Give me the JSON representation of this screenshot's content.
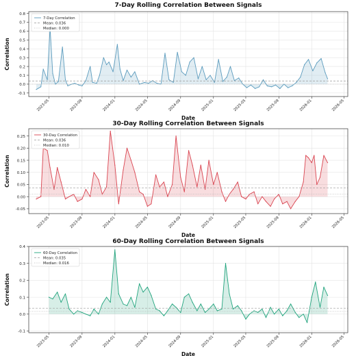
{
  "chart_data": [
    {
      "type": "line",
      "title": "7-Day Rolling Correlation Between Signals",
      "xlabel": "Date",
      "ylabel": "Correlation",
      "color": "#5b9bbd",
      "xlim": [
        "2023-02-15",
        "2026-05-15"
      ],
      "ylim": [
        -0.14,
        0.82
      ],
      "yticks": [
        -0.1,
        0.0,
        0.1,
        0.2,
        0.3,
        0.4,
        0.5,
        0.6,
        0.7,
        0.8
      ],
      "xticks": [
        "2023-05",
        "2023-09",
        "2024-01",
        "2024-05",
        "2024-09",
        "2025-01",
        "2025-05",
        "2025-09",
        "2026-01",
        "2026-05"
      ],
      "grid": true,
      "legend": {
        "position": "top-left",
        "entries": [
          "7-Day Correlation",
          "Mean: 0.036",
          "Median: 0.000"
        ]
      },
      "reference_lines": [
        {
          "name": "Mean: 0.036",
          "value": 0.036
        },
        {
          "name": "Median: 0.000",
          "value": 0.0
        }
      ],
      "series": [
        {
          "name": "7-Day Correlation",
          "x": [
            "2023-03-15",
            "2023-04-01",
            "2023-04-10",
            "2023-04-25",
            "2023-05-05",
            "2023-05-15",
            "2023-05-25",
            "2023-06-05",
            "2023-06-20",
            "2023-07-01",
            "2023-07-10",
            "2023-07-25",
            "2023-08-05",
            "2023-08-20",
            "2023-09-01",
            "2023-09-15",
            "2023-10-01",
            "2023-10-10",
            "2023-10-25",
            "2023-11-05",
            "2023-11-20",
            "2023-12-01",
            "2023-12-10",
            "2023-12-25",
            "2024-01-10",
            "2024-01-20",
            "2024-02-01",
            "2024-02-15",
            "2024-03-01",
            "2024-03-15",
            "2024-04-01",
            "2024-04-20",
            "2024-05-05",
            "2024-05-20",
            "2024-06-05",
            "2024-06-20",
            "2024-07-05",
            "2024-07-20",
            "2024-08-05",
            "2024-08-20",
            "2024-09-05",
            "2024-09-20",
            "2024-10-05",
            "2024-10-20",
            "2024-11-05",
            "2024-11-20",
            "2024-12-05",
            "2024-12-20",
            "2025-01-05",
            "2025-01-20",
            "2025-02-05",
            "2025-02-20",
            "2025-03-05",
            "2025-03-20",
            "2025-04-05",
            "2025-04-20",
            "2025-05-05",
            "2025-05-20",
            "2025-06-05",
            "2025-06-20",
            "2025-07-05",
            "2025-07-20",
            "2025-08-05",
            "2025-08-20",
            "2025-09-05",
            "2025-09-20",
            "2025-10-05",
            "2025-10-20",
            "2025-11-05",
            "2025-11-20",
            "2025-12-05",
            "2025-12-20",
            "2026-01-05",
            "2026-01-20",
            "2026-02-05",
            "2026-02-20",
            "2026-03-01"
          ],
          "values": [
            -0.06,
            -0.03,
            0.17,
            0.05,
            0.64,
            0.12,
            0.0,
            0.03,
            0.42,
            0.05,
            -0.02,
            0.0,
            0.01,
            -0.01,
            -0.02,
            0.04,
            0.2,
            0.02,
            0.01,
            0.1,
            0.3,
            0.22,
            0.25,
            0.14,
            0.45,
            0.17,
            0.04,
            0.16,
            0.08,
            0.14,
            0.0,
            0.02,
            0.01,
            0.04,
            0.01,
            0.0,
            0.35,
            0.05,
            0.02,
            0.36,
            0.14,
            0.1,
            0.25,
            0.3,
            0.06,
            0.2,
            0.05,
            0.1,
            0.02,
            0.28,
            0.03,
            0.08,
            0.2,
            0.04,
            0.07,
            0.0,
            -0.04,
            -0.01,
            -0.05,
            -0.03,
            0.05,
            -0.02,
            -0.03,
            -0.01,
            -0.05,
            0.0,
            -0.04,
            -0.02,
            0.02,
            0.08,
            0.22,
            0.28,
            0.15,
            0.24,
            0.29,
            0.13,
            0.06
          ]
        }
      ]
    },
    {
      "type": "line",
      "title": "30-Day Rolling Correlation Between Signals",
      "xlabel": "Date",
      "ylabel": "Correlation",
      "color": "#d9434f",
      "xlim": [
        "2023-02-15",
        "2026-05-15"
      ],
      "ylim": [
        -0.07,
        0.28
      ],
      "yticks": [
        -0.05,
        0.0,
        0.05,
        0.1,
        0.15,
        0.2,
        0.25
      ],
      "xticks": [
        "2023-05",
        "2023-09",
        "2024-01",
        "2024-05",
        "2024-09",
        "2025-01",
        "2025-05",
        "2025-09",
        "2026-01",
        "2026-05"
      ],
      "grid": true,
      "legend": {
        "position": "top-left",
        "entries": [
          "30-Day Correlation",
          "Mean: 0.036",
          "Median: 0.010"
        ]
      },
      "reference_lines": [
        {
          "name": "Mean: 0.036",
          "value": 0.036
        },
        {
          "name": "Median: 0.010",
          "value": 0.01
        }
      ],
      "series": [
        {
          "name": "30-Day Correlation",
          "x": [
            "2023-03-15",
            "2023-04-01",
            "2023-04-10",
            "2023-04-25",
            "2023-05-05",
            "2023-05-20",
            "2023-06-01",
            "2023-06-15",
            "2023-07-01",
            "2023-07-15",
            "2023-08-01",
            "2023-08-15",
            "2023-09-01",
            "2023-09-15",
            "2023-10-01",
            "2023-10-15",
            "2023-11-01",
            "2023-11-15",
            "2023-12-01",
            "2023-12-15",
            "2024-01-01",
            "2024-01-15",
            "2024-02-01",
            "2024-02-15",
            "2024-03-01",
            "2024-03-15",
            "2024-04-01",
            "2024-04-15",
            "2024-05-01",
            "2024-05-15",
            "2024-06-01",
            "2024-06-15",
            "2024-07-01",
            "2024-07-15",
            "2024-08-01",
            "2024-08-15",
            "2024-09-01",
            "2024-09-15",
            "2024-10-01",
            "2024-10-15",
            "2024-11-01",
            "2024-11-15",
            "2024-12-01",
            "2024-12-15",
            "2025-01-01",
            "2025-01-15",
            "2025-02-01",
            "2025-02-15",
            "2025-03-01",
            "2025-03-15",
            "2025-04-01",
            "2025-04-15",
            "2025-05-01",
            "2025-05-15",
            "2025-06-01",
            "2025-06-15",
            "2025-07-01",
            "2025-07-15",
            "2025-08-01",
            "2025-08-15",
            "2025-09-01",
            "2025-09-15",
            "2025-10-01",
            "2025-10-15",
            "2025-11-01",
            "2025-11-15",
            "2025-12-01",
            "2025-12-10",
            "2025-12-20",
            "2026-01-01",
            "2026-01-10",
            "2026-01-20",
            "2026-02-01",
            "2026-02-15",
            "2026-03-01"
          ],
          "values": [
            -0.01,
            0.0,
            0.2,
            0.19,
            0.12,
            0.03,
            0.12,
            0.06,
            -0.01,
            0.0,
            0.01,
            -0.02,
            -0.01,
            0.03,
            0.0,
            0.1,
            0.07,
            0.01,
            0.04,
            0.27,
            0.13,
            -0.03,
            0.11,
            0.2,
            0.15,
            0.1,
            0.02,
            0.01,
            -0.04,
            -0.03,
            0.09,
            0.04,
            0.06,
            0.0,
            0.05,
            0.25,
            0.08,
            0.02,
            0.19,
            0.13,
            0.04,
            0.13,
            0.03,
            0.15,
            0.05,
            0.1,
            0.02,
            -0.02,
            0.01,
            0.03,
            0.06,
            0.0,
            -0.01,
            0.01,
            0.02,
            -0.03,
            0.0,
            -0.02,
            -0.04,
            -0.01,
            0.01,
            -0.03,
            -0.02,
            -0.05,
            -0.02,
            0.0,
            0.06,
            0.17,
            0.16,
            0.14,
            0.17,
            0.05,
            0.08,
            0.17,
            0.14
          ]
        }
      ]
    },
    {
      "type": "line",
      "title": "60-Day Rolling Correlation Between Signals",
      "xlabel": "Date",
      "ylabel": "Correlation",
      "color": "#1fa37c",
      "xlim": [
        "2023-02-15",
        "2026-05-15"
      ],
      "ylim": [
        -0.11,
        0.4
      ],
      "yticks": [
        -0.1,
        0.0,
        0.1,
        0.2,
        0.3,
        0.4
      ],
      "xticks": [
        "2023-05",
        "2023-09",
        "2024-01",
        "2024-05",
        "2024-09",
        "2025-01",
        "2025-05",
        "2025-09",
        "2026-01",
        "2026-05"
      ],
      "grid": true,
      "legend": {
        "position": "top-left",
        "entries": [
          "60-Day Correlation",
          "Mean: 0.035",
          "Median: 0.016"
        ]
      },
      "reference_lines": [
        {
          "name": "Mean: 0.035",
          "value": 0.035
        },
        {
          "name": "Median: 0.016",
          "value": 0.016
        }
      ],
      "series": [
        {
          "name": "60-Day Correlation",
          "x": [
            "2023-05-01",
            "2023-05-15",
            "2023-06-01",
            "2023-06-15",
            "2023-07-01",
            "2023-07-15",
            "2023-08-01",
            "2023-08-15",
            "2023-09-01",
            "2023-09-15",
            "2023-10-01",
            "2023-10-15",
            "2023-11-01",
            "2023-11-15",
            "2023-12-01",
            "2023-12-15",
            "2024-01-01",
            "2024-01-15",
            "2024-02-01",
            "2024-02-15",
            "2024-03-01",
            "2024-03-15",
            "2024-04-01",
            "2024-04-15",
            "2024-05-01",
            "2024-05-15",
            "2024-06-01",
            "2024-06-15",
            "2024-07-01",
            "2024-07-15",
            "2024-08-01",
            "2024-08-15",
            "2024-09-01",
            "2024-09-15",
            "2024-10-01",
            "2024-10-15",
            "2024-11-01",
            "2024-11-15",
            "2024-12-01",
            "2024-12-15",
            "2025-01-01",
            "2025-01-15",
            "2025-02-01",
            "2025-02-15",
            "2025-03-01",
            "2025-03-15",
            "2025-04-01",
            "2025-04-15",
            "2025-05-01",
            "2025-05-15",
            "2025-06-01",
            "2025-06-15",
            "2025-07-01",
            "2025-07-15",
            "2025-08-01",
            "2025-08-15",
            "2025-09-01",
            "2025-09-15",
            "2025-10-01",
            "2025-10-15",
            "2025-11-01",
            "2025-11-15",
            "2025-12-01",
            "2025-12-15",
            "2026-01-01",
            "2026-01-15",
            "2026-02-01",
            "2026-02-15",
            "2026-03-01"
          ],
          "values": [
            0.1,
            0.09,
            0.13,
            0.07,
            0.12,
            0.03,
            0.0,
            0.02,
            0.01,
            0.0,
            -0.01,
            0.03,
            0.0,
            0.06,
            0.1,
            0.07,
            0.38,
            0.12,
            0.06,
            0.05,
            0.1,
            0.04,
            0.18,
            0.13,
            0.16,
            0.11,
            0.03,
            0.02,
            -0.01,
            0.02,
            0.06,
            0.04,
            0.01,
            0.1,
            0.12,
            0.07,
            0.02,
            0.06,
            0.01,
            0.03,
            0.06,
            0.02,
            0.03,
            0.3,
            0.12,
            0.03,
            0.05,
            0.02,
            -0.03,
            0.0,
            0.02,
            0.01,
            0.03,
            -0.02,
            0.04,
            0.0,
            0.03,
            -0.01,
            0.02,
            0.06,
            0.01,
            -0.02,
            0.0,
            -0.05,
            0.1,
            0.19,
            0.04,
            0.16,
            0.11
          ]
        }
      ]
    }
  ]
}
